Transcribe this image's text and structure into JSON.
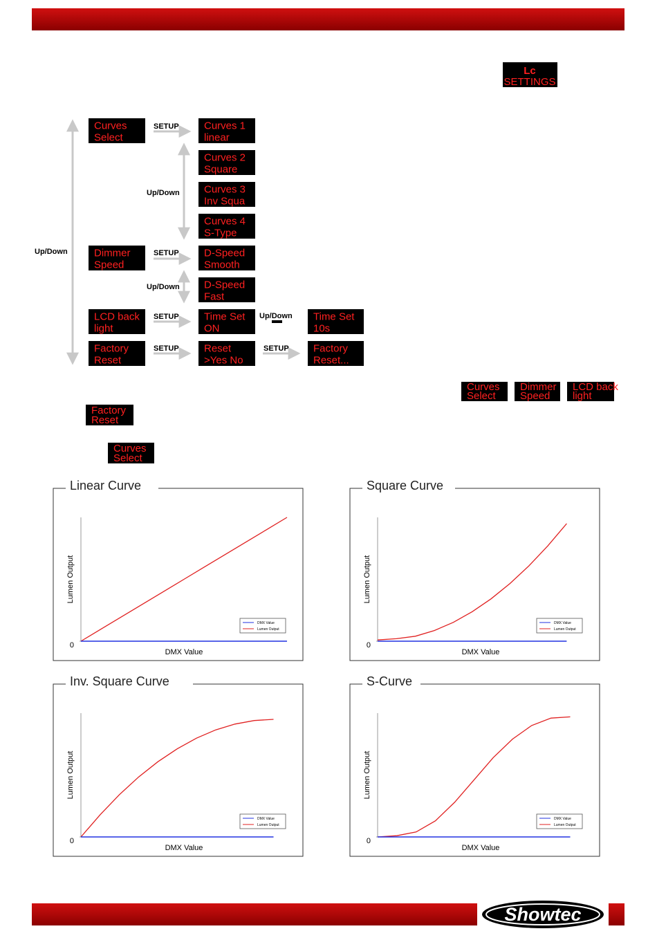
{
  "settings_display": {
    "lines": [
      "Lc",
      "SETTINGS"
    ]
  },
  "menu_boxes": [
    {
      "lines": [
        "Curves",
        "Select"
      ]
    },
    {
      "lines": [
        "Curves 1",
        "linear"
      ]
    },
    {
      "lines": [
        "Curves 2",
        "Square"
      ]
    },
    {
      "lines": [
        "Curves 3",
        "Inv Squa"
      ]
    },
    {
      "lines": [
        "Curves 4",
        "S-Type"
      ]
    },
    {
      "lines": [
        "Dimmer",
        "Speed"
      ]
    },
    {
      "lines": [
        "D-Speed",
        "Smooth"
      ]
    },
    {
      "lines": [
        "D-Speed",
        "Fast"
      ]
    },
    {
      "lines": [
        "LCD back",
        "light"
      ]
    },
    {
      "lines": [
        "Time Set",
        "ON"
      ]
    },
    {
      "lines": [
        "Time Set",
        "10s"
      ]
    },
    {
      "lines": [
        "Factory",
        "Reset"
      ]
    },
    {
      "lines": [
        "Reset",
        ">Yes  No"
      ]
    },
    {
      "lines": [
        "Factory",
        "Reset..."
      ]
    }
  ],
  "arrow_labels": [
    "Up/Down",
    "SETUP",
    "Up/Down",
    "SETUP",
    "Up/Down",
    "SETUP",
    "Up/Down",
    "SETUP",
    "SETUP"
  ],
  "inline_boxes": [
    {
      "lines": [
        "Curves",
        "Select"
      ]
    },
    {
      "lines": [
        "Dimmer",
        "Speed"
      ]
    },
    {
      "lines": [
        "LCD back",
        "light"
      ]
    },
    {
      "lines": [
        "Factory",
        "Reset"
      ]
    },
    {
      "lines": [
        "Curves",
        "Select"
      ]
    }
  ],
  "chart_data": [
    {
      "type": "line",
      "title": "Linear Curve",
      "y_label": "Lumen Output",
      "x_label": "DMX Value",
      "xlim": [
        0,
        100
      ],
      "ylim": [
        0,
        100
      ],
      "yticks": [
        0
      ],
      "x": [
        0,
        10,
        20,
        30,
        40,
        50,
        60,
        70,
        80,
        90,
        100
      ],
      "series": [
        {
          "name": "DMX Value",
          "color": "#2030e0",
          "values": [
            0,
            0,
            0,
            0,
            0,
            0,
            0,
            0,
            0,
            0,
            0
          ]
        },
        {
          "name": "Lumen Output",
          "color": "#e02020",
          "values": [
            0,
            10,
            20,
            30,
            40,
            50,
            60,
            70,
            80,
            90,
            100
          ]
        }
      ]
    },
    {
      "type": "line",
      "title": "Square Curve",
      "y_label": "Lumen Output",
      "x_label": "DMX Value",
      "xlim": [
        0,
        109
      ],
      "ylim": [
        0,
        100
      ],
      "yticks": [
        0
      ],
      "x": [
        0,
        10,
        20,
        30,
        40,
        50,
        60,
        70,
        80,
        90,
        100
      ],
      "series": [
        {
          "name": "DMX Value",
          "color": "#2030e0",
          "values": [
            0,
            0,
            0,
            0,
            0,
            0,
            0,
            0,
            0,
            0,
            0
          ]
        },
        {
          "name": "Lumen Output",
          "color": "#e02020",
          "values": [
            1,
            2,
            4,
            8.6,
            15.2,
            23.8,
            34.2,
            46.6,
            60.8,
            77,
            95
          ]
        }
      ]
    },
    {
      "type": "line",
      "title": "Inv. Square Curve",
      "y_label": "Lumen Output",
      "x_label": "DMX Value",
      "xlim": [
        0,
        107
      ],
      "ylim": [
        0,
        100
      ],
      "yticks": [
        0
      ],
      "x": [
        0,
        10,
        20,
        30,
        40,
        50,
        60,
        70,
        80,
        90,
        100
      ],
      "series": [
        {
          "name": "DMX Value",
          "color": "#2030e0",
          "values": [
            0,
            0,
            0,
            0,
            0,
            0,
            0,
            0,
            0,
            0,
            0
          ]
        },
        {
          "name": "Lumen Output",
          "color": "#e02020",
          "values": [
            0,
            18,
            34.2,
            48.5,
            60.8,
            71.2,
            79.8,
            86.5,
            91.2,
            94,
            95
          ]
        }
      ]
    },
    {
      "type": "line",
      "title": "S-Curve",
      "y_label": "Lumen Output",
      "x_label": "DMX Value",
      "xlim": [
        0,
        107
      ],
      "ylim": [
        0,
        100
      ],
      "yticks": [
        0
      ],
      "x": [
        0,
        10,
        20,
        30,
        40,
        50,
        60,
        70,
        80,
        90,
        100
      ],
      "series": [
        {
          "name": "DMX Value",
          "color": "#2030e0",
          "values": [
            0,
            0,
            0,
            0,
            0,
            0,
            0,
            0,
            0,
            0,
            0
          ]
        },
        {
          "name": "Lumen Output",
          "color": "#e02020",
          "values": [
            0,
            1,
            4,
            13,
            28,
            46,
            64,
            79,
            90,
            96,
            97
          ]
        }
      ]
    }
  ],
  "logo": "Showtec"
}
